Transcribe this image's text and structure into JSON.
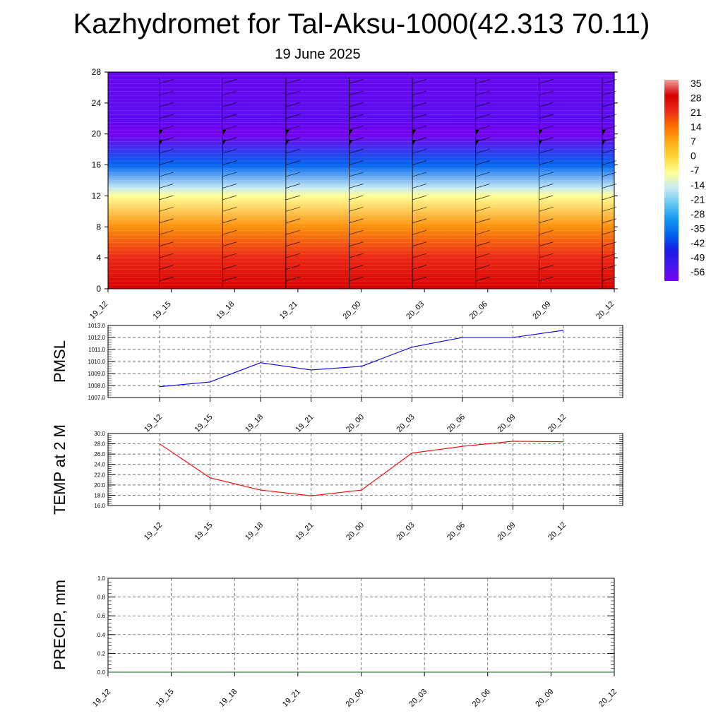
{
  "title": "Kazhydromet for Tal-Aksu-1000(42.313 70.11)",
  "subtitle": "19 June 2025",
  "time_labels": [
    "19_12",
    "19_15",
    "19_18",
    "19_21",
    "20_00",
    "20_03",
    "20_06",
    "20_09",
    "20_12"
  ],
  "colors": {
    "pmsl_line": "#0000ff",
    "temp_line": "#ff0000",
    "precip_line": "#006400"
  },
  "chart_data": [
    {
      "type": "heatmap",
      "name": "temperature-cross-section",
      "x": [
        "19_12",
        "19_15",
        "19_18",
        "19_21",
        "20_00",
        "20_03",
        "20_06",
        "20_09",
        "20_12"
      ],
      "y_ticks": [
        0,
        4,
        8,
        12,
        16,
        20,
        24,
        28
      ],
      "ylim": [
        0,
        28
      ],
      "colorbar_labels": [
        "35",
        "28",
        "21",
        "14",
        "7",
        "0",
        "-7",
        "-14",
        "-21",
        "-28",
        "-35",
        "-42",
        "-49",
        "-56"
      ],
      "colorbar_values": [
        35,
        28,
        21,
        14,
        7,
        0,
        -7,
        -14,
        -21,
        -28,
        -35,
        -42,
        -49,
        -56
      ],
      "profile": [
        {
          "level": 0,
          "value": 28
        },
        {
          "level": 4,
          "value": 21
        },
        {
          "level": 8,
          "value": 10
        },
        {
          "level": 12,
          "value": -7
        },
        {
          "level": 13,
          "value": -14
        },
        {
          "level": 16,
          "value": -35
        },
        {
          "level": 20,
          "value": -56
        },
        {
          "level": 22,
          "value": -52
        },
        {
          "level": 28,
          "value": -54
        }
      ]
    },
    {
      "type": "line",
      "name": "pmsl",
      "ylabel": "PMSL",
      "categories": [
        "19_12",
        "19_15",
        "19_18",
        "19_21",
        "20_00",
        "20_03",
        "20_06",
        "20_09",
        "20_12"
      ],
      "values": [
        1007.9,
        1008.3,
        1009.9,
        1009.3,
        1009.6,
        1011.2,
        1012.0,
        1012.0,
        1012.6
      ],
      "ylim": [
        1007.0,
        1013.0
      ],
      "y_ticks": [
        "1007.0",
        "1008.0",
        "1009.0",
        "1010.0",
        "1011.0",
        "1012.0",
        "1013.0"
      ],
      "grid": true
    },
    {
      "type": "line",
      "name": "temp-2m",
      "ylabel": "TEMP at 2 M",
      "categories": [
        "19_12",
        "19_15",
        "19_18",
        "19_21",
        "20_00",
        "20_03",
        "20_06",
        "20_09",
        "20_12"
      ],
      "values": [
        28.0,
        21.4,
        19.0,
        17.9,
        19.0,
        26.2,
        27.5,
        28.5,
        28.4
      ],
      "ylim": [
        16.0,
        30.0
      ],
      "y_ticks": [
        "16.0",
        "18.0",
        "20.0",
        "22.0",
        "24.0",
        "26.0",
        "28.0",
        "30.0"
      ],
      "grid": true
    },
    {
      "type": "line",
      "name": "precip",
      "ylabel": "PRECIP, mm",
      "categories": [
        "19_12",
        "19_15",
        "19_18",
        "19_21",
        "20_00",
        "20_03",
        "20_06",
        "20_09",
        "20_12"
      ],
      "values": [
        0,
        0,
        0,
        0,
        0,
        0,
        0,
        0,
        0
      ],
      "ylim": [
        0.0,
        1.0
      ],
      "y_ticks": [
        "0.0",
        "0.2",
        "0.4",
        "0.6",
        "0.8",
        "1.0"
      ],
      "grid": true
    }
  ]
}
